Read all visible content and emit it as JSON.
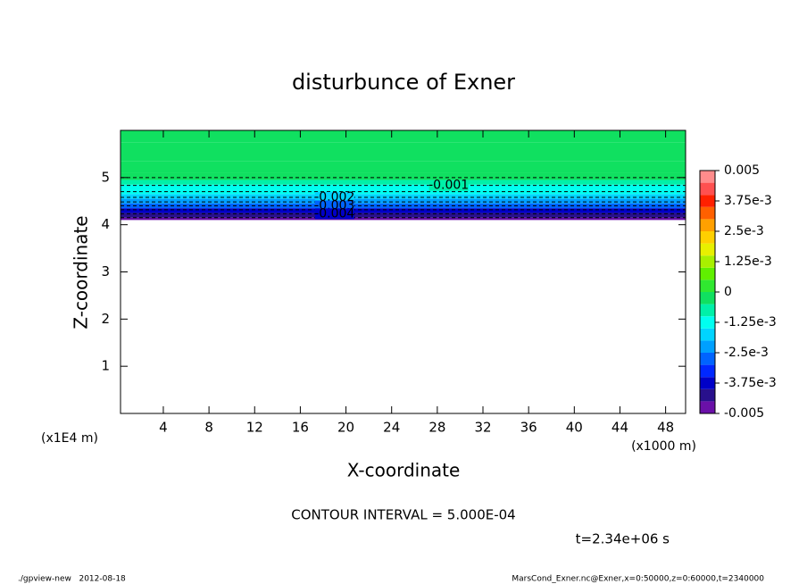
{
  "chart_data": {
    "type": "contour",
    "title": "disturbunce of Exner",
    "x_label": "X-coordinate",
    "y_label": "Z-coordinate",
    "x_unit": "(x1000 m)",
    "y_unit": "(x1E4 m)",
    "xlim": [
      0.25,
      49.75
    ],
    "ylim": [
      0,
      6
    ],
    "xticks": [
      4,
      8,
      12,
      16,
      20,
      24,
      28,
      32,
      36,
      40,
      44,
      48
    ],
    "yticks": [
      1,
      2,
      3,
      4,
      5
    ],
    "profile": {
      "z": [
        4.1,
        4.2,
        4.3,
        4.4,
        4.5,
        4.6,
        4.7,
        4.8,
        4.9,
        5.0,
        5.2,
        5.5,
        6.0
      ],
      "values": [
        -0.0048,
        -0.0042,
        -0.0036,
        -0.003,
        -0.0024,
        -0.0019,
        -0.0015,
        -0.0011,
        -0.0008,
        -0.0005,
        -0.0002,
        -0.0001,
        -5e-05
      ]
    },
    "contour_labels": [
      -0.001,
      -0.002,
      -0.003,
      -0.004
    ],
    "levels": [
      -0.005,
      -0.0045,
      -0.004,
      -0.0035,
      -0.003,
      -0.0025,
      -0.002,
      -0.0015,
      -0.001,
      -0.0005,
      0,
      0.0005,
      0.001,
      0.0015,
      0.002,
      0.0025,
      0.003,
      0.0035,
      0.004,
      0.0045,
      0.005
    ],
    "colors": [
      "#6a10a8",
      "#28108c",
      "#0000c8",
      "#0028ff",
      "#0064ff",
      "#00a0ff",
      "#00d4ff",
      "#00fff0",
      "#00f0a8",
      "#10e060",
      "#30e830",
      "#60f000",
      "#a8f000",
      "#e8f000",
      "#ffd000",
      "#ffa000",
      "#ff6000",
      "#ff2000",
      "#ff5050",
      "#ff8c8c"
    ],
    "colorbar_ticks": [
      -0.005,
      {
        "value": -0.00375,
        "label": "-3.75e-3"
      },
      {
        "value": -0.0025,
        "label": "-2.5e-3"
      },
      {
        "value": -0.00125,
        "label": "-1.25e-3"
      },
      0,
      {
        "value": 0.00125,
        "label": "1.25e-3"
      },
      {
        "value": 0.0025,
        "label": "2.5e-3"
      },
      {
        "value": 0.00375,
        "label": "3.75e-3"
      },
      0.005
    ],
    "contour_interval": "CONTOUR INTERVAL = 5.000E-04",
    "time_label": "t=2.34e+06 s",
    "footer_left": "./gpview-new   2012-08-18",
    "footer_right": "MarsCond_Exner.nc@Exner,x=0:50000,z=0:60000,t=2340000"
  }
}
